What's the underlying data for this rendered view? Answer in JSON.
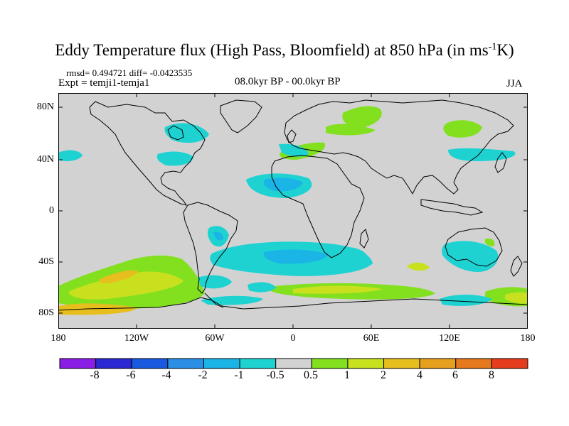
{
  "title": {
    "pre": "Eddy Temperature flux (High Pass, Bloomfield) at 850 hPa (in ms",
    "sup": "-1",
    "post": "K)"
  },
  "stats": {
    "text": "rmsd= 0.494721 diff= -0.0423535"
  },
  "experiment": {
    "text": "Expt = temji1-temja1"
  },
  "period": {
    "text": "08.0kyr BP - 00.0kyr BP"
  },
  "season": {
    "text": "JJA"
  },
  "axes": {
    "lat_labels": [
      "80N",
      "40N",
      "0",
      "40S",
      "80S"
    ],
    "lon_labels": [
      "180",
      "120W",
      "60W",
      "0",
      "60E",
      "120E",
      "180"
    ]
  },
  "colorbar": {
    "levels": [
      "-8",
      "-6",
      "-4",
      "-2",
      "-1",
      "-0.5",
      "0.5",
      "1",
      "2",
      "4",
      "6",
      "8"
    ],
    "colors": [
      "#8a1ee6",
      "#2a28d2",
      "#1a5ae0",
      "#2b8fe6",
      "#1ab4e6",
      "#1ed2d2",
      "#d2d2d2",
      "#82e01e",
      "#c8e01e",
      "#e6be1e",
      "#e6a01e",
      "#e6781e",
      "#e63c1e"
    ]
  },
  "map_colors": {
    "background": "#d2d2d2",
    "neg_strong": "#1ab4e6",
    "neg_weak": "#1ed2d2",
    "pos_weak": "#82e01e",
    "pos_mid": "#c8e01e",
    "pos_strong": "#e6be1e"
  }
}
